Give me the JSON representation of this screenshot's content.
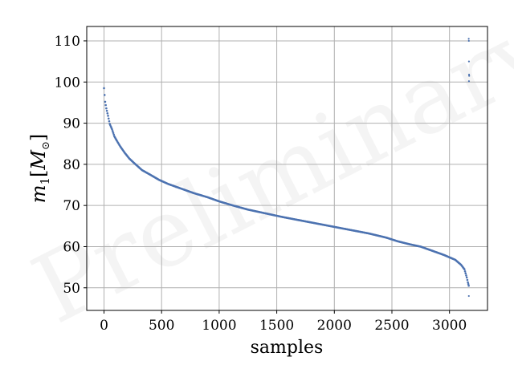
{
  "chart_data": {
    "type": "scatter",
    "title": "",
    "xlabel": "samples",
    "ylabel_main": "m",
    "ylabel_sub": "1",
    "ylabel_bracket_open": "[",
    "ylabel_unit": "M",
    "ylabel_unit_sub": "⊙",
    "ylabel_bracket_close": "]",
    "watermark": "Preliminary",
    "xlim": [
      -150,
      3330
    ],
    "ylim": [
      44.5,
      113.5
    ],
    "xticks": [
      0,
      500,
      1000,
      1500,
      2000,
      2500,
      3000
    ],
    "yticks": [
      50,
      60,
      70,
      80,
      90,
      100,
      110
    ],
    "xtick_labels": [
      "0",
      "500",
      "1000",
      "1500",
      "2000",
      "2500",
      "3000"
    ],
    "ytick_labels": [
      "50",
      "60",
      "70",
      "80",
      "90",
      "100",
      "110"
    ],
    "grid": true,
    "legend": "none",
    "marker_color": "#4c72b0",
    "series": [
      {
        "curve": [
          [
            0,
            98.5
          ],
          [
            10,
            95.2
          ],
          [
            20,
            93.6
          ],
          [
            35,
            91.8
          ],
          [
            50,
            89.8
          ],
          [
            70,
            88.5
          ],
          [
            90,
            86.8
          ],
          [
            110,
            85.8
          ],
          [
            140,
            84.4
          ],
          [
            180,
            82.8
          ],
          [
            220,
            81.4
          ],
          [
            270,
            80.1
          ],
          [
            330,
            78.6
          ],
          [
            400,
            77.5
          ],
          [
            480,
            76.2
          ],
          [
            560,
            75.2
          ],
          [
            660,
            74.2
          ],
          [
            780,
            73.0
          ],
          [
            900,
            72.0
          ],
          [
            1000,
            71.0
          ],
          [
            1120,
            70.0
          ],
          [
            1250,
            69.0
          ],
          [
            1400,
            68.1
          ],
          [
            1550,
            67.2
          ],
          [
            1700,
            66.4
          ],
          [
            1850,
            65.6
          ],
          [
            2000,
            64.8
          ],
          [
            2150,
            64.0
          ],
          [
            2300,
            63.2
          ],
          [
            2450,
            62.2
          ],
          [
            2550,
            61.3
          ],
          [
            2650,
            60.6
          ],
          [
            2750,
            60.0
          ],
          [
            2850,
            59.0
          ],
          [
            2950,
            58.0
          ],
          [
            3050,
            56.8
          ],
          [
            3100,
            55.6
          ],
          [
            3130,
            54.5
          ],
          [
            3150,
            52.5
          ],
          [
            3160,
            51.3
          ],
          [
            3167,
            50.5
          ]
        ],
        "outliers": [
          [
            3167,
            110.5
          ],
          [
            3168,
            110.0
          ],
          [
            3169,
            105.0
          ],
          [
            3170,
            101.8
          ],
          [
            3171,
            101.5
          ],
          [
            3169,
            100.2
          ],
          [
            3168,
            48.0
          ]
        ]
      }
    ]
  }
}
